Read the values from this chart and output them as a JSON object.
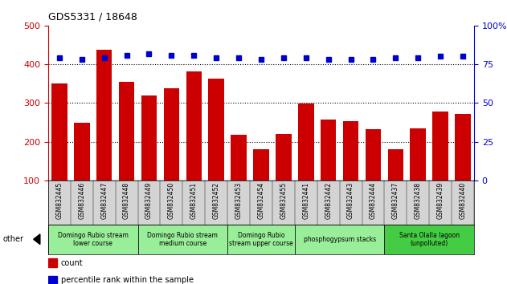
{
  "title": "GDS5331 / 18648",
  "samples": [
    "GSM832445",
    "GSM832446",
    "GSM832447",
    "GSM832448",
    "GSM832449",
    "GSM832450",
    "GSM832451",
    "GSM832452",
    "GSM832453",
    "GSM832454",
    "GSM832455",
    "GSM832441",
    "GSM832442",
    "GSM832443",
    "GSM832444",
    "GSM832437",
    "GSM832438",
    "GSM832439",
    "GSM832440"
  ],
  "counts": [
    350,
    248,
    438,
    355,
    320,
    338,
    382,
    362,
    218,
    180,
    220,
    298,
    258,
    252,
    233,
    180,
    235,
    278,
    272
  ],
  "percentiles": [
    79,
    78,
    79,
    81,
    82,
    81,
    81,
    79,
    79,
    78,
    79,
    79,
    78,
    78,
    78,
    79,
    79,
    80,
    80
  ],
  "bar_color": "#cc0000",
  "dot_color": "#0000cc",
  "ylim_left": [
    100,
    500
  ],
  "ylim_right": [
    0,
    100
  ],
  "yticks_left": [
    100,
    200,
    300,
    400,
    500
  ],
  "yticks_right": [
    0,
    25,
    50,
    75,
    100
  ],
  "groups": [
    {
      "label": "Domingo Rubio stream\nlower course",
      "start": 0,
      "end": 4,
      "color": "#99ee99"
    },
    {
      "label": "Domingo Rubio stream\nmedium course",
      "start": 4,
      "end": 8,
      "color": "#99ee99"
    },
    {
      "label": "Domingo Rubio\nstream upper course",
      "start": 8,
      "end": 11,
      "color": "#99ee99"
    },
    {
      "label": "phosphogypsum stacks",
      "start": 11,
      "end": 15,
      "color": "#99ee99"
    },
    {
      "label": "Santa Olalla lagoon\n(unpolluted)",
      "start": 15,
      "end": 19,
      "color": "#44cc44"
    }
  ],
  "bg_color": "#d4d4d4",
  "plot_bg": "#ffffff",
  "grid_color": "#000000",
  "left_axis_color": "#cc0000",
  "right_axis_color": "#0000cc",
  "grid_dotted_at": [
    200,
    300,
    400
  ]
}
